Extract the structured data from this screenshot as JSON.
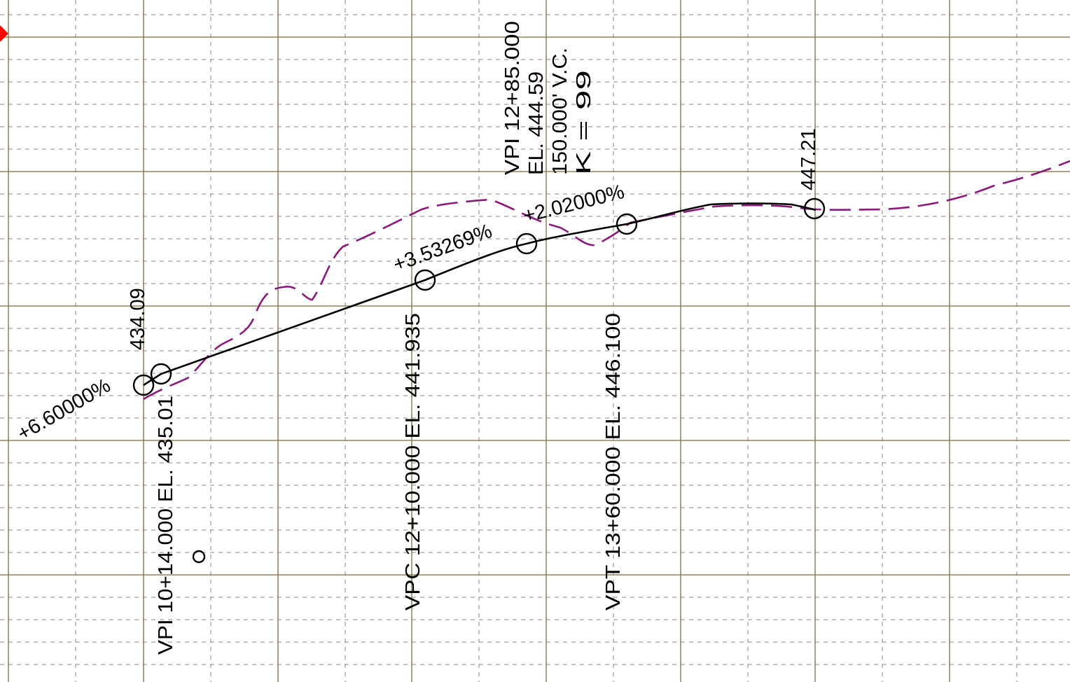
{
  "colors": {
    "background": "#ffffff",
    "major_grid": "#7a6a3a",
    "minor_grid": "#8a8a8a",
    "design_profile": "#000000",
    "ground_profile": "#8b1a7a",
    "marker": "#ff0000"
  },
  "grades": {
    "g1": "+6.60000%",
    "g2": "+3.53269%",
    "g3": "+2.02000%"
  },
  "elevations": {
    "left": "434.09",
    "right": "447.21"
  },
  "vpi1": {
    "label": "VPI 10+14.000 EL. 435.01"
  },
  "vpc": {
    "label": "VPC 12+10.000 EL. 441.935"
  },
  "vpt": {
    "label": "VPT 13+60.000 EL. 446.100"
  },
  "vpi2": {
    "line1": "VPI 12+85.000",
    "line2": "EL. 444.59",
    "line3": "150.000' V.C.",
    "line4": "K = 99"
  }
}
